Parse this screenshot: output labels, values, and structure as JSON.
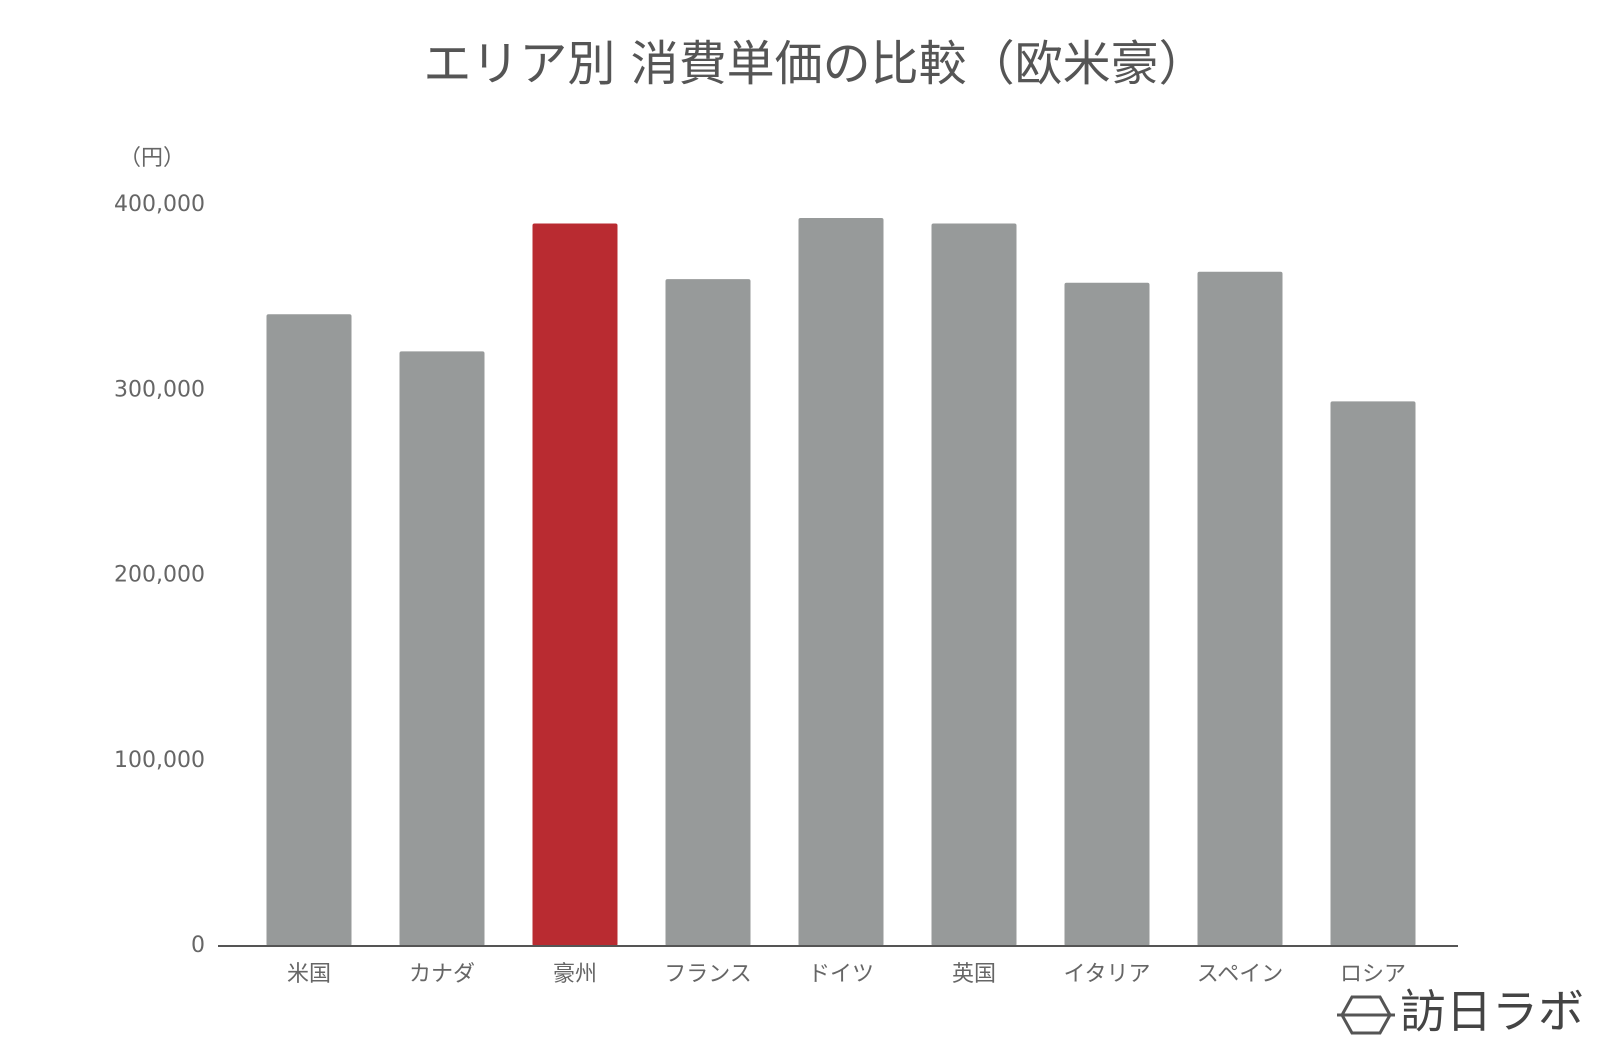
{
  "chart_data": {
    "type": "bar",
    "title": "エリア別 消費単価の比較（欧米豪）",
    "y_unit": "（円）",
    "categories": [
      "米国",
      "カナダ",
      "豪州",
      "フランス",
      "ドイツ",
      "英国",
      "イタリア",
      "スペイン",
      "ロシア"
    ],
    "values": [
      341000,
      321000,
      390000,
      360000,
      393000,
      390000,
      358000,
      364000,
      294000
    ],
    "colors": [
      "#979a9a",
      "#979a9a",
      "#b92b31",
      "#979a9a",
      "#979a9a",
      "#979a9a",
      "#979a9a",
      "#979a9a",
      "#979a9a"
    ],
    "ylim": [
      0,
      400000
    ],
    "yticks": [
      0,
      {
        "value": 100000,
        "label": "100,000"
      },
      {
        "value": 200000,
        "label": "200,000"
      },
      {
        "value": 300000,
        "label": "300,000"
      },
      {
        "value": 400000,
        "label": "400,000"
      }
    ],
    "grid": false
  },
  "logo": "訪日ラボ"
}
